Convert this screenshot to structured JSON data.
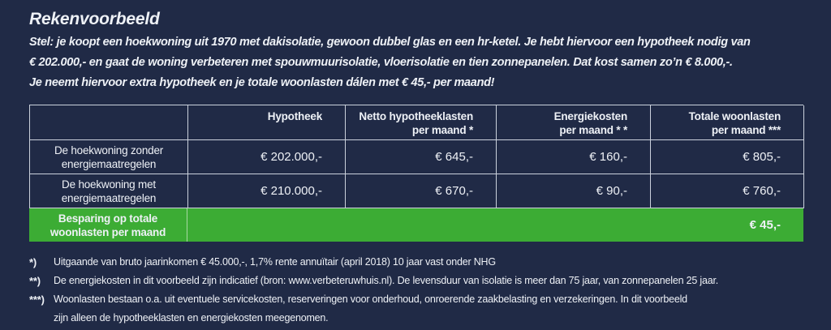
{
  "colors": {
    "background": "#202A46",
    "accent_green": "#3CAC34",
    "text": "#EEF1F6",
    "table_border": "#CBD1DC"
  },
  "intro": {
    "title": "Rekenvoorbeeld",
    "lines": [
      "Stel: je koopt een hoekwoning uit 1970 met dakisolatie, gewoon dubbel glas en een hr-ketel. Je hebt hiervoor een hypotheek nodig van",
      "€ 202.000,- en gaat de woning verbeteren met spouwmuurisolatie, vloerisolatie en tien zonnepanelen. Dat kost samen zo’n € 8.000,-.",
      "Je neemt hiervoor extra hypotheek en je totale woonlasten dálen met € 45,- per maand!"
    ]
  },
  "table": {
    "columns": [
      {
        "line1": "",
        "line2": ""
      },
      {
        "line1": "Hypotheek",
        "line2": ""
      },
      {
        "line1": "Netto hypotheeklasten",
        "line2": "per maand *"
      },
      {
        "line1": "Energiekosten",
        "line2": "per maand * *"
      },
      {
        "line1": "Totale woonlasten",
        "line2": "per maand ***"
      }
    ],
    "rows": [
      {
        "label": [
          "De hoekwoning zonder",
          "energiemaatregelen"
        ],
        "values": [
          "€ 202.000,-",
          "€ 645,-",
          "€ 160,-",
          "€ 805,-"
        ]
      },
      {
        "label": [
          "De hoekwoning met",
          "energiemaatregelen"
        ],
        "values": [
          "€ 210.000,-",
          "€ 670,-",
          "€ 90,-",
          "€ 760,-"
        ]
      }
    ],
    "savings": {
      "label": [
        "Besparing op totale",
        "woonlasten per maand"
      ],
      "value": "€ 45,-"
    }
  },
  "footnotes": [
    {
      "marker": "*)",
      "lines": [
        "Uitgaande van bruto jaarinkomen € 45.000,-, 1,7% rente annuïtair (april 2018) 10 jaar vast onder NHG"
      ]
    },
    {
      "marker": "**)",
      "lines": [
        "De energiekosten in dit voorbeeld zijn indicatief (bron: www.verbeteruwhuis.nl). De levensduur van isolatie is meer dan 75 jaar, van zonnepanelen 25 jaar."
      ]
    },
    {
      "marker": "***)",
      "lines": [
        "Woonlasten bestaan o.a. uit eventuele servicekosten, reserveringen voor onderhoud, onroerende zaakbelasting en verzekeringen. In dit voorbeeld",
        "zijn alleen de hypotheeklasten en energiekosten meegenomen."
      ]
    }
  ]
}
